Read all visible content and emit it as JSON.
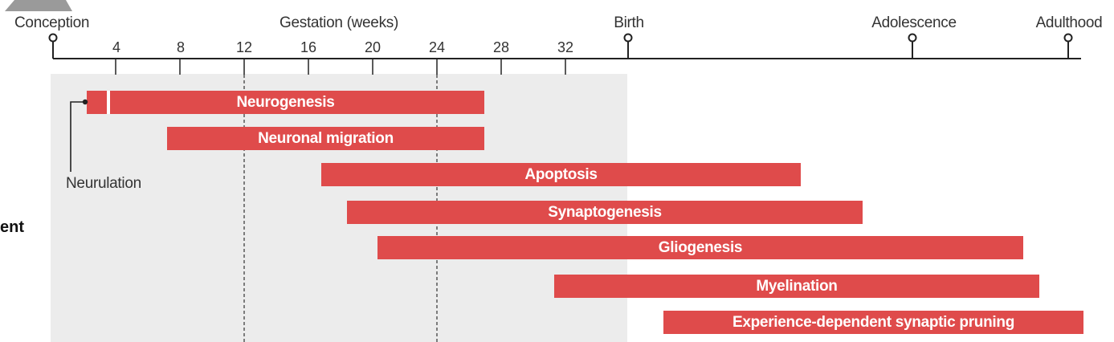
{
  "timeline": {
    "milestones": [
      {
        "label": "Conception"
      },
      {
        "label": "Birth"
      },
      {
        "label": "Adolescence"
      },
      {
        "label": "Adulthood"
      }
    ],
    "gestation_label": "Gestation (weeks)",
    "week_ticks": [
      "4",
      "8",
      "12",
      "16",
      "20",
      "24",
      "28",
      "32"
    ]
  },
  "side_label": "ent",
  "neurulation_label": "Neurulation",
  "processes": [
    {
      "label": "Neurogenesis"
    },
    {
      "label": "Neuronal migration"
    },
    {
      "label": "Apoptosis"
    },
    {
      "label": "Synaptogenesis"
    },
    {
      "label": "Gliogenesis"
    },
    {
      "label": "Myelination"
    },
    {
      "label": "Experience-dependent synaptic pruning"
    }
  ],
  "colors": {
    "bar": "#df4b4b",
    "prenatal_shade": "#ececec",
    "axis": "#222222"
  }
}
